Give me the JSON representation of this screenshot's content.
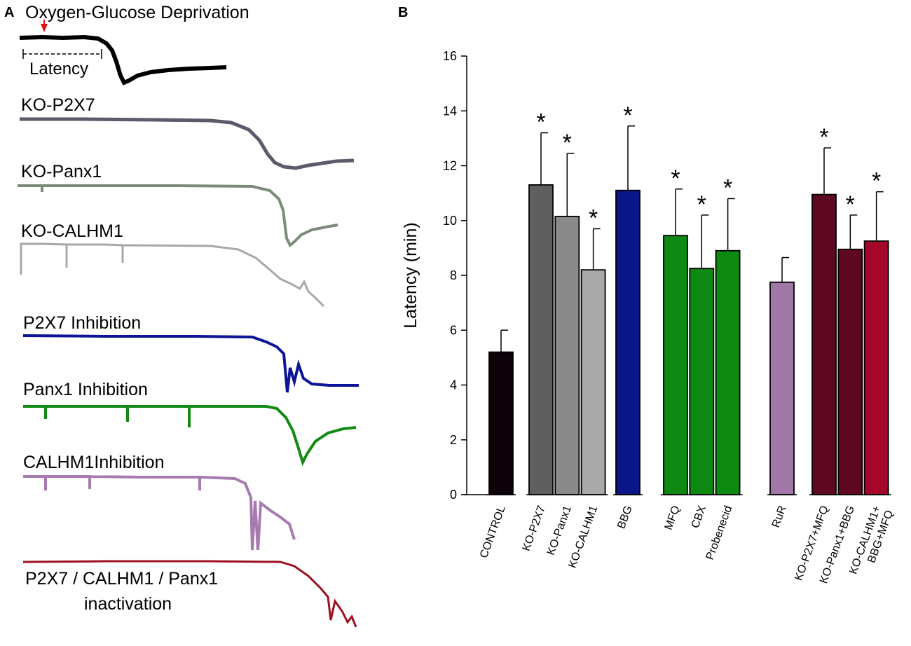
{
  "panel_a": {
    "letter": "A",
    "traces": [
      {
        "label": "Oxygen-Glucose Deprivation",
        "color": "#000000"
      },
      {
        "label": "KO-P2X7",
        "color": "#5b5b6b"
      },
      {
        "label": "KO-Panx1",
        "color": "#7a8c78"
      },
      {
        "label": "KO-CALHM1",
        "color": "#a8a8a8"
      },
      {
        "label": "P2X7 Inhibition",
        "color": "#0c1596"
      },
      {
        "label": "Panx1 Inhibition",
        "color": "#138a13"
      },
      {
        "label": "CALHM1Inhibition",
        "color": "#a87bb0"
      },
      {
        "label": "P2X7 / CALHM1 / Panx1",
        "label2": "inactivation",
        "color": "#9c1020"
      }
    ],
    "latency_label": "Latency",
    "onset_marker_color": "#e01010"
  },
  "panel_b": {
    "letter": "B"
  },
  "chart_data": {
    "type": "bar",
    "title": "",
    "xlabel": "",
    "ylabel": "Latency (min)",
    "ylim": [
      0,
      16
    ],
    "yticks": [
      0,
      2,
      4,
      6,
      8,
      10,
      12,
      14,
      16
    ],
    "grid": false,
    "categories": [
      "CONTROL",
      "KO-P2X7",
      "KO-Panx1",
      "KO-CALHM1",
      "BBG",
      "MFQ",
      "CBX",
      "Probenecid",
      "RuR",
      "KO-P2X7+MFQ",
      "KO-Panx1+BBG",
      "KO-CALHM1+\nBBG+MFQ"
    ],
    "groups": [
      [
        0
      ],
      [
        1,
        2,
        3
      ],
      [
        4
      ],
      [
        5,
        6,
        7
      ],
      [
        8
      ],
      [
        9,
        10,
        11
      ]
    ],
    "values": [
      5.2,
      11.3,
      10.15,
      8.2,
      11.1,
      9.45,
      8.25,
      8.9,
      7.75,
      10.95,
      8.95,
      9.25
    ],
    "errors": [
      0.8,
      1.9,
      2.3,
      1.5,
      2.35,
      1.7,
      1.95,
      1.9,
      0.9,
      1.7,
      1.25,
      1.8
    ],
    "significant": [
      false,
      true,
      true,
      true,
      true,
      true,
      true,
      true,
      false,
      true,
      true,
      true
    ],
    "significance_marker": "*",
    "colors": [
      "#0d0209",
      "#5f5f5f",
      "#8a8a8a",
      "#a9a9a9",
      "#0a1688",
      "#0e8a12",
      "#0e8a12",
      "#0e8a12",
      "#a177a8",
      "#5e0720",
      "#5e0720",
      "#a5072a"
    ]
  }
}
